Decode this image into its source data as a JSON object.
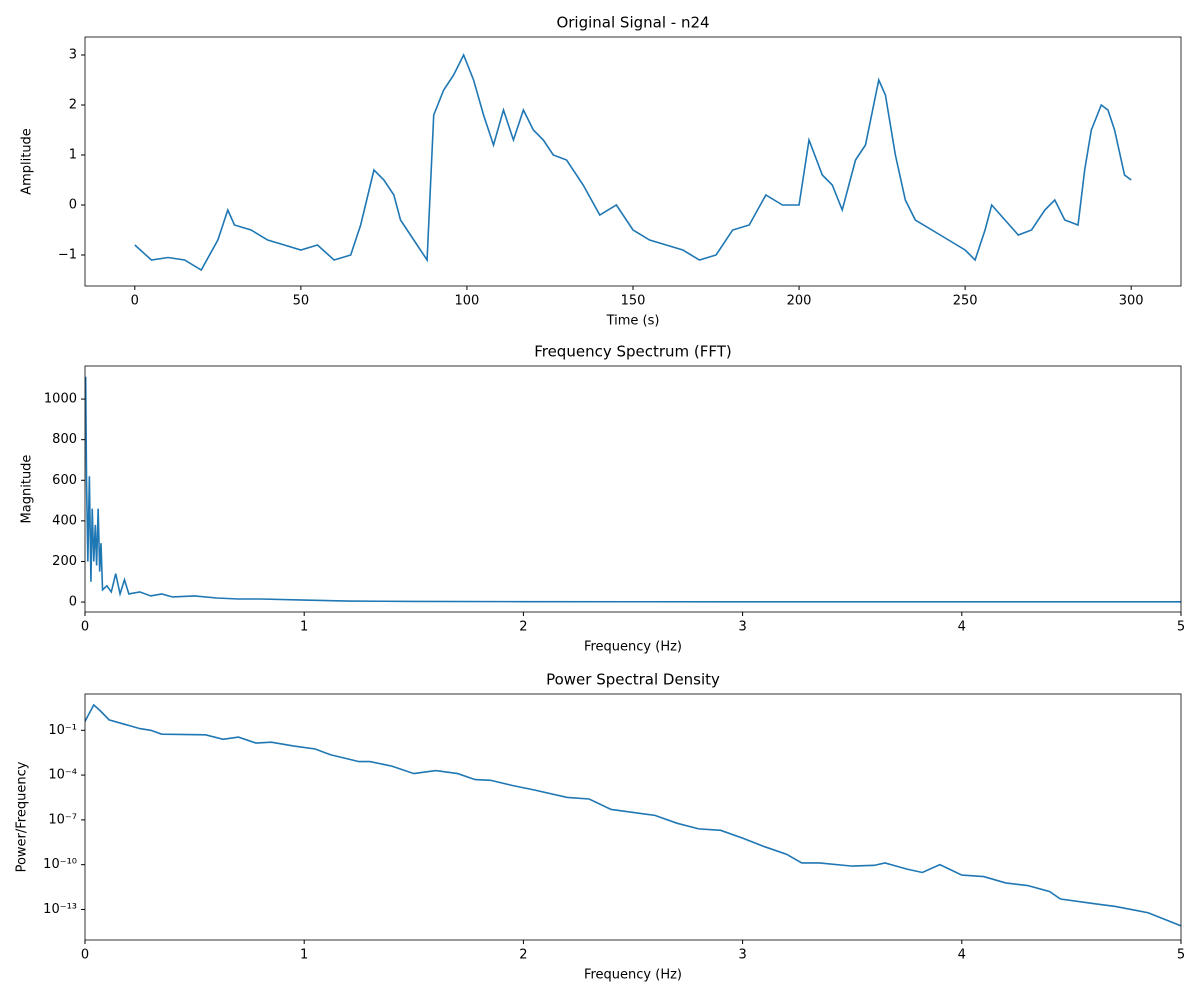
{
  "chart_data": [
    {
      "type": "line",
      "title": "Original Signal - n24",
      "x_label": "Time (s)",
      "y_label": "Amplitude",
      "xlim": [
        -15,
        315
      ],
      "ylim": [
        -1.62,
        3.36
      ],
      "xticks": [
        0,
        50,
        100,
        150,
        200,
        250,
        300
      ],
      "yticks": [
        {
          "value": -1,
          "label": "−1"
        },
        0,
        1,
        2,
        3
      ],
      "series": [
        {
          "color": "#1f77b4",
          "x": [
            0,
            5,
            10,
            15,
            20,
            25,
            28,
            30,
            35,
            40,
            45,
            50,
            55,
            60,
            65,
            68,
            72,
            75,
            78,
            80,
            85,
            88,
            90,
            93,
            96,
            99,
            102,
            105,
            108,
            111,
            114,
            117,
            120,
            123,
            126,
            130,
            135,
            140,
            145,
            150,
            155,
            160,
            165,
            170,
            175,
            180,
            185,
            190,
            195,
            200,
            203,
            207,
            210,
            213,
            217,
            220,
            224,
            226,
            229,
            232,
            235,
            240,
            245,
            250,
            253,
            256,
            258,
            262,
            266,
            270,
            274,
            277,
            280,
            284,
            286,
            288,
            291,
            293,
            295,
            298,
            300
          ],
          "values": [
            -0.8,
            -1.1,
            -1.05,
            -1.1,
            -1.3,
            -0.7,
            -0.1,
            -0.4,
            -0.5,
            -0.7,
            -0.8,
            -0.9,
            -0.8,
            -1.1,
            -1.0,
            -0.4,
            0.7,
            0.5,
            0.2,
            -0.3,
            -0.8,
            -1.1,
            1.8,
            2.3,
            2.6,
            3.0,
            2.5,
            1.8,
            1.2,
            1.9,
            1.3,
            1.9,
            1.5,
            1.3,
            1.0,
            0.9,
            0.4,
            -0.2,
            0.0,
            -0.5,
            -0.7,
            -0.8,
            -0.9,
            -1.1,
            -1.0,
            -0.5,
            -0.4,
            0.2,
            0.0,
            0.0,
            1.3,
            0.6,
            0.4,
            -0.1,
            0.9,
            1.2,
            2.5,
            2.2,
            1.0,
            0.1,
            -0.3,
            -0.5,
            -0.7,
            -0.9,
            -1.1,
            -0.5,
            0.0,
            -0.3,
            -0.6,
            -0.5,
            -0.1,
            0.1,
            -0.3,
            -0.4,
            0.7,
            1.5,
            2.0,
            1.9,
            1.5,
            0.6,
            0.5
          ]
        }
      ]
    },
    {
      "type": "line",
      "title": "Frequency Spectrum (FFT)",
      "x_label": "Frequency (Hz)",
      "y_label": "Magnitude",
      "xlim": [
        0,
        5
      ],
      "ylim": [
        -49,
        1163
      ],
      "xticks": [
        0,
        1,
        2,
        3,
        4,
        5
      ],
      "yticks": [
        0,
        200,
        400,
        600,
        800,
        1000
      ],
      "series": [
        {
          "color": "#1f77b4",
          "x": [
            0.003,
            0.007,
            0.013,
            0.02,
            0.027,
            0.033,
            0.04,
            0.047,
            0.053,
            0.06,
            0.067,
            0.073,
            0.08,
            0.1,
            0.12,
            0.14,
            0.16,
            0.18,
            0.2,
            0.25,
            0.3,
            0.35,
            0.4,
            0.5,
            0.6,
            0.7,
            0.8,
            1.0,
            1.2,
            1.5,
            2,
            3,
            4,
            5
          ],
          "values": [
            1110,
            600,
            200,
            620,
            100,
            460,
            200,
            380,
            180,
            460,
            150,
            290,
            60,
            80,
            50,
            140,
            40,
            110,
            40,
            50,
            30,
            40,
            25,
            30,
            20,
            15,
            15,
            10,
            5,
            3,
            2,
            1,
            1,
            1
          ]
        }
      ]
    },
    {
      "type": "line",
      "title": "Power Spectral Density",
      "x_label": "Frequency (Hz)",
      "y_label": "Power/Frequency",
      "log_y": true,
      "xlim": [
        0,
        5
      ],
      "ylim": [
        9e-16,
        27
      ],
      "xticks": [
        0,
        1,
        2,
        3,
        4,
        5
      ],
      "yticks": [
        {
          "value": 1e-13,
          "label": "10⁻¹³"
        },
        {
          "value": 1e-10,
          "label": "10⁻¹⁰"
        },
        {
          "value": 1e-07,
          "label": "10⁻⁷"
        },
        {
          "value": 0.0001,
          "label": "10⁻⁴"
        },
        {
          "value": 0.1,
          "label": "10⁻¹"
        }
      ],
      "series": [
        {
          "color": "#1f77b4",
          "x": [
            0,
            0.04,
            0.07,
            0.11,
            0.25,
            0.3,
            0.35,
            0.55,
            0.63,
            0.7,
            0.78,
            0.85,
            0.95,
            1.05,
            1.12,
            1.25,
            1.3,
            1.4,
            1.5,
            1.6,
            1.7,
            1.78,
            1.85,
            1.95,
            2.05,
            2.2,
            2.3,
            2.4,
            2.55,
            2.6,
            2.7,
            2.8,
            2.9,
            3.0,
            3.1,
            3.2,
            3.27,
            3.35,
            3.5,
            3.6,
            3.65,
            3.75,
            3.82,
            3.9,
            4.0,
            4.1,
            4.2,
            4.3,
            4.4,
            4.45,
            4.6,
            4.7,
            4.85,
            5.0
          ],
          "values": [
            0.4,
            5,
            2,
            0.5,
            0.13,
            0.1,
            0.055,
            0.05,
            0.025,
            0.035,
            0.014,
            0.016,
            0.009,
            0.0056,
            0.0023,
            0.0008,
            0.0008,
            0.0004,
            0.000126,
            0.0002,
            0.000126,
            5e-05,
            4.5e-05,
            2e-05,
            1e-05,
            3.2e-06,
            2.5e-06,
            5e-07,
            2.5e-07,
            2e-07,
            6e-08,
            2.5e-08,
            2e-08,
            6e-09,
            1.6e-09,
            5e-10,
            1.3e-10,
            1.3e-10,
            8e-11,
            9e-11,
            1.3e-10,
            5e-11,
            3e-11,
            1e-10,
            2e-11,
            1.6e-11,
            6e-12,
            4e-12,
            1.6e-12,
            5e-13,
            2.5e-13,
            1.6e-13,
            6e-14,
            8e-15
          ]
        }
      ]
    }
  ]
}
